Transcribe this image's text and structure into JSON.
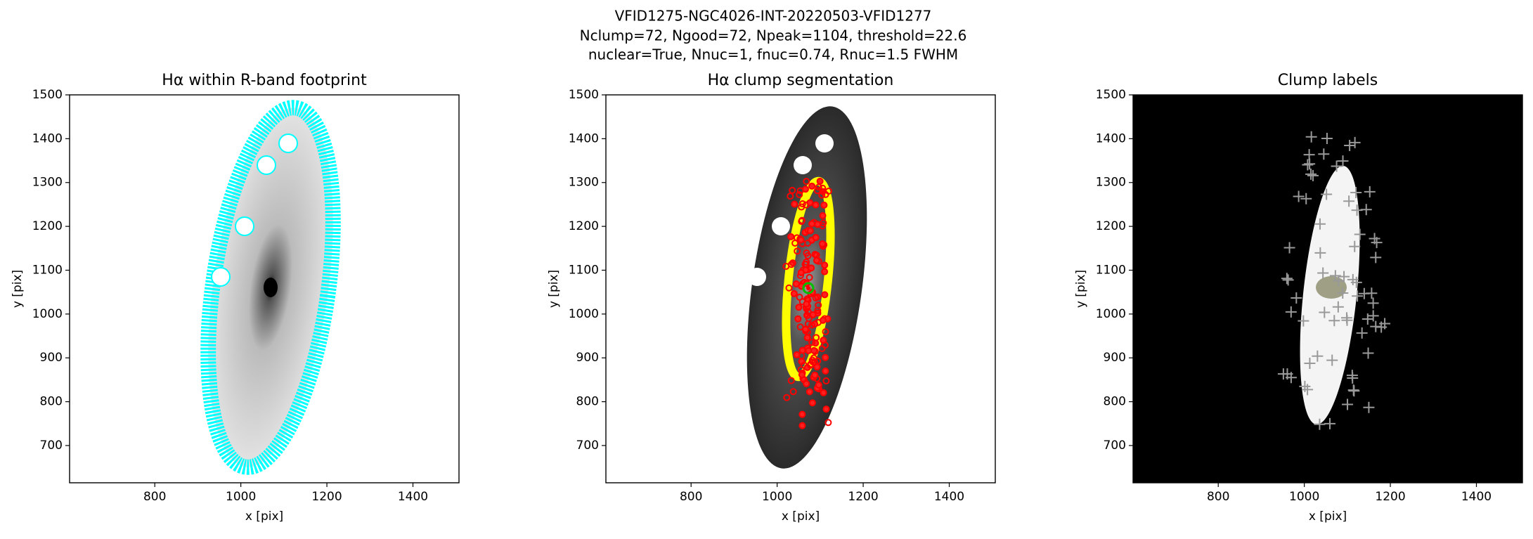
{
  "suptitle": [
    "VFID1275-NGC4026-INT-20220503-VFID1277",
    "Nclump=72, Ngood=72, Npeak=1104, threshold=22.6",
    "nuclear=True, Nnuc=1, fnuc=0.74, Rnuc=1.5 FWHM"
  ],
  "chart_data": [
    {
      "type": "image",
      "title": "Hα within R-band footprint",
      "xlabel": "x [pix]",
      "ylabel": "y [pix]",
      "xlim": [
        602,
        1507
      ],
      "ylim": [
        615,
        1500
      ],
      "xticks": [
        800,
        1000,
        1200,
        1400
      ],
      "yticks": [
        700,
        800,
        900,
        1000,
        1100,
        1200,
        1300,
        1400,
        1500
      ]
    },
    {
      "type": "image",
      "title": "Hα clump segmentation",
      "xlabel": "x [pix]",
      "ylabel": "y [pix]",
      "xlim": [
        602,
        1507
      ],
      "ylim": [
        615,
        1500
      ],
      "xticks": [
        800,
        1000,
        1200,
        1400
      ],
      "yticks": [
        700,
        800,
        900,
        1000,
        1100,
        1200,
        1300,
        1400,
        1500
      ]
    },
    {
      "type": "image",
      "title": "Clump labels",
      "xlabel": "x [pix]",
      "ylabel": "y [pix]",
      "xlim": [
        602,
        1507
      ],
      "ylim": [
        615,
        1500
      ],
      "xticks": [
        800,
        1000,
        1200,
        1400
      ],
      "yticks": [
        700,
        800,
        900,
        1000,
        1100,
        1200,
        1300,
        1400,
        1500
      ]
    }
  ]
}
